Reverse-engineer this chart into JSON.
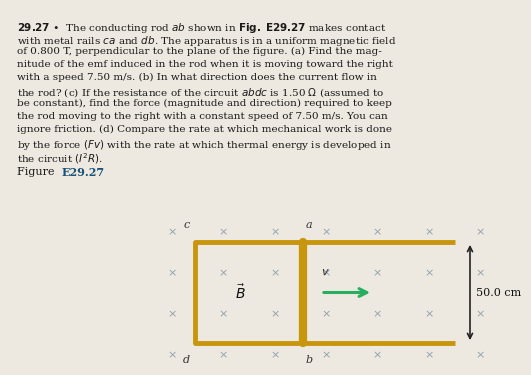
{
  "background_color": "#ede9e0",
  "text_color": "#1a1a1a",
  "figure_label_color": "#1a5276",
  "rail_color": "#c8960c",
  "arrow_color": "#27ae60",
  "x_color": "#8899aa",
  "dim_label": "50.0 cm",
  "corner_labels": [
    "c",
    "a",
    "d",
    "b"
  ],
  "rail_thickness": 3.5,
  "rod_thickness": 6.0
}
